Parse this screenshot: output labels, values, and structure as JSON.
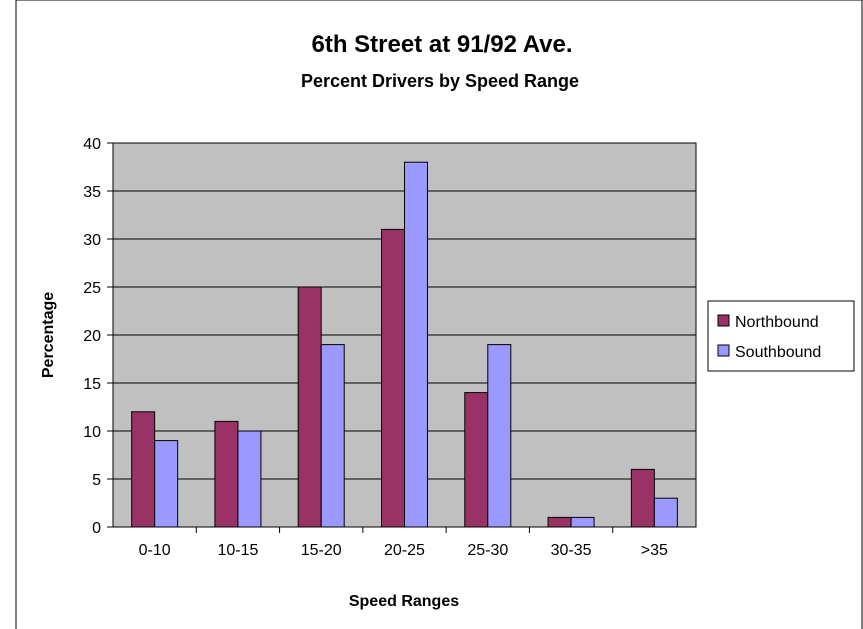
{
  "colors": {
    "plot_background": "#c0c0c0",
    "northbound": "#993366",
    "southbound": "#9999ff",
    "gridline": "#000000",
    "frame": "#000000"
  },
  "chart_data": {
    "type": "bar",
    "title": "6th Street at 91/92 Ave.",
    "subtitle": "Percent Drivers by Speed Range",
    "xlabel": "Speed Ranges",
    "ylabel": "Percentage",
    "ylim": [
      0,
      40
    ],
    "yticks": [
      0,
      5,
      10,
      15,
      20,
      25,
      30,
      35,
      40
    ],
    "grid": true,
    "legend": "right",
    "categories": [
      "0-10",
      "10-15",
      "15-20",
      "20-25",
      "25-30",
      "30-35",
      ">35"
    ],
    "series": [
      {
        "name": "Northbound",
        "values": [
          12,
          11,
          25,
          31,
          14,
          1,
          6
        ]
      },
      {
        "name": "Southbound",
        "values": [
          9,
          10,
          19,
          38,
          19,
          1,
          3
        ]
      }
    ]
  }
}
